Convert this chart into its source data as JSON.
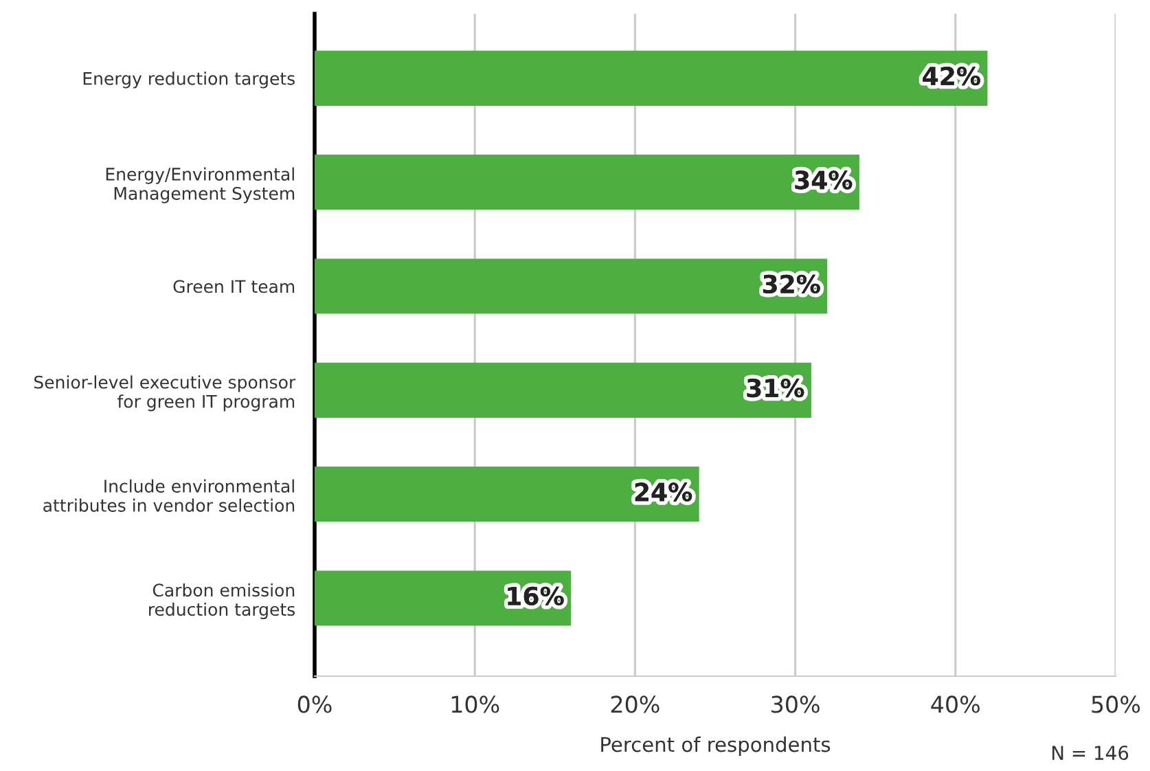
{
  "chart_data": {
    "type": "bar",
    "orientation": "horizontal",
    "xlabel": "Percent of respondents",
    "categories": [
      "Energy reduction targets",
      "Energy/Environmental\nManagement System",
      "Green IT team",
      "Senior-level executive sponsor\nfor green IT program",
      "Include environmental\nattributes in vendor selection",
      "Carbon emission\nreduction targets"
    ],
    "values": [
      42,
      34,
      32,
      31,
      24,
      16
    ],
    "value_labels": [
      "42%",
      "34%",
      "32%",
      "31%",
      "24%",
      "16%"
    ],
    "color": "#4caf3f",
    "xlim": [
      0,
      50
    ],
    "xticks": [
      {
        "value": 0,
        "label": "0%"
      },
      {
        "value": 10,
        "label": "10%"
      },
      {
        "value": 20,
        "label": "20%"
      },
      {
        "value": 30,
        "label": "30%"
      },
      {
        "value": 40,
        "label": "40%"
      },
      {
        "value": 50,
        "label": "50%"
      }
    ],
    "grid": "x",
    "legend": false,
    "annotations": [
      "N = 146"
    ]
  }
}
